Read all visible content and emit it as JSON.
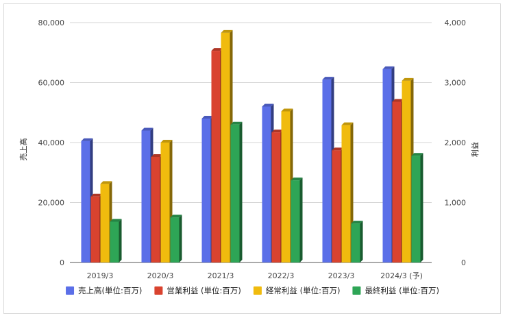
{
  "chart_data": {
    "type": "bar",
    "categories": [
      "2019/3",
      "2020/3",
      "2021/3",
      "2022/3",
      "2023/3",
      "2024/3 (予)"
    ],
    "left_axis": {
      "label": "売上高",
      "ylim": [
        0,
        80000
      ],
      "ticks": [
        0,
        20000,
        40000,
        60000,
        80000
      ],
      "tick_labels": [
        "0",
        "20,000",
        "40,000",
        "60,000",
        "80,000"
      ]
    },
    "right_axis": {
      "label": "利益",
      "ylim": [
        0,
        4000
      ],
      "ticks": [
        0,
        1000,
        2000,
        3000,
        4000
      ],
      "tick_labels": [
        "0",
        "1,000",
        "2,000",
        "3,000",
        "4,000"
      ]
    },
    "series": [
      {
        "name": "売上高(単位:百万)",
        "axis": "left",
        "color": "#5b6fe8",
        "values": [
          40500,
          44000,
          48000,
          52000,
          61000,
          64500
        ]
      },
      {
        "name": "営業利益 (単位:百万)",
        "axis": "right",
        "color": "#d9432f",
        "values": [
          1100,
          1760,
          3530,
          2170,
          1870,
          2680
        ]
      },
      {
        "name": "経常利益 (単位:百万)",
        "axis": "right",
        "color": "#f0bb0e",
        "values": [
          1310,
          2000,
          3830,
          2520,
          2290,
          3030
        ]
      },
      {
        "name": "最終利益 (単位:百万)",
        "axis": "right",
        "color": "#2ea556",
        "values": [
          680,
          750,
          2300,
          1370,
          650,
          1780
        ]
      }
    ],
    "grid": true,
    "legend_position": "bottom"
  }
}
